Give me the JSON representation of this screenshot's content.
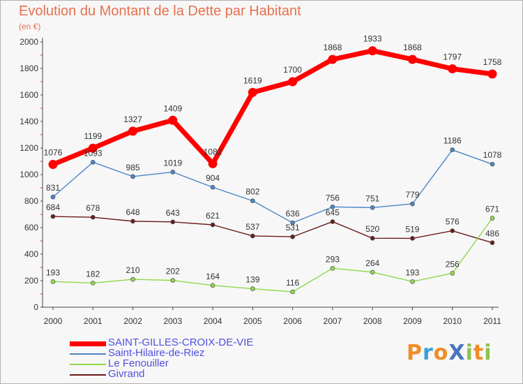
{
  "title": "Evolution du Montant de la Dette par Habitant",
  "subtitle": "(en €)",
  "logo": {
    "text": "ProXiti",
    "letters": [
      {
        "ch": "P",
        "color": "#f28c28"
      },
      {
        "ch": "r",
        "color": "#3aa0d8"
      },
      {
        "ch": "o",
        "color": "#f28c28"
      },
      {
        "ch": "X",
        "color": "#4b73c2"
      },
      {
        "ch": "i",
        "color": "#8bc34a"
      },
      {
        "ch": "t",
        "color": "#f28c28"
      },
      {
        "ch": "i",
        "color": "#8bc34a"
      }
    ]
  },
  "chart_data": {
    "type": "line",
    "title": "Evolution du Montant de la Dette par Habitant",
    "subtitle": "(en €)",
    "xlabel": "",
    "ylabel": "",
    "x": [
      "2000",
      "2001",
      "2002",
      "2003",
      "2004",
      "2005",
      "2006",
      "2007",
      "2008",
      "2009",
      "2010",
      "2011"
    ],
    "ylim": [
      0,
      2000
    ],
    "yticks": [
      0,
      200,
      400,
      600,
      800,
      1000,
      1200,
      1400,
      1600,
      1800,
      2000
    ],
    "grid": false,
    "legend_position": "bottom-left",
    "series": [
      {
        "name": "SAINT-GILLES-CROIX-DE-VIE",
        "color": "#ff0000",
        "values": [
          1076,
          1199,
          1327,
          1409,
          1082,
          1619,
          1700,
          1868,
          1933,
          1868,
          1797,
          1758
        ]
      },
      {
        "name": "Saint-Hilaire-de-Riez",
        "color": "#4a86c5",
        "values": [
          831,
          1093,
          985,
          1019,
          904,
          802,
          636,
          756,
          751,
          779,
          1186,
          1078
        ]
      },
      {
        "name": "Le Fenouiller",
        "color": "#8fd84a",
        "values": [
          193,
          182,
          210,
          202,
          164,
          139,
          116,
          293,
          264,
          193,
          256,
          671
        ]
      },
      {
        "name": "Givrand",
        "color": "#6b1a1a",
        "values": [
          684,
          678,
          648,
          643,
          621,
          537,
          531,
          645,
          520,
          519,
          576,
          486
        ]
      }
    ]
  }
}
